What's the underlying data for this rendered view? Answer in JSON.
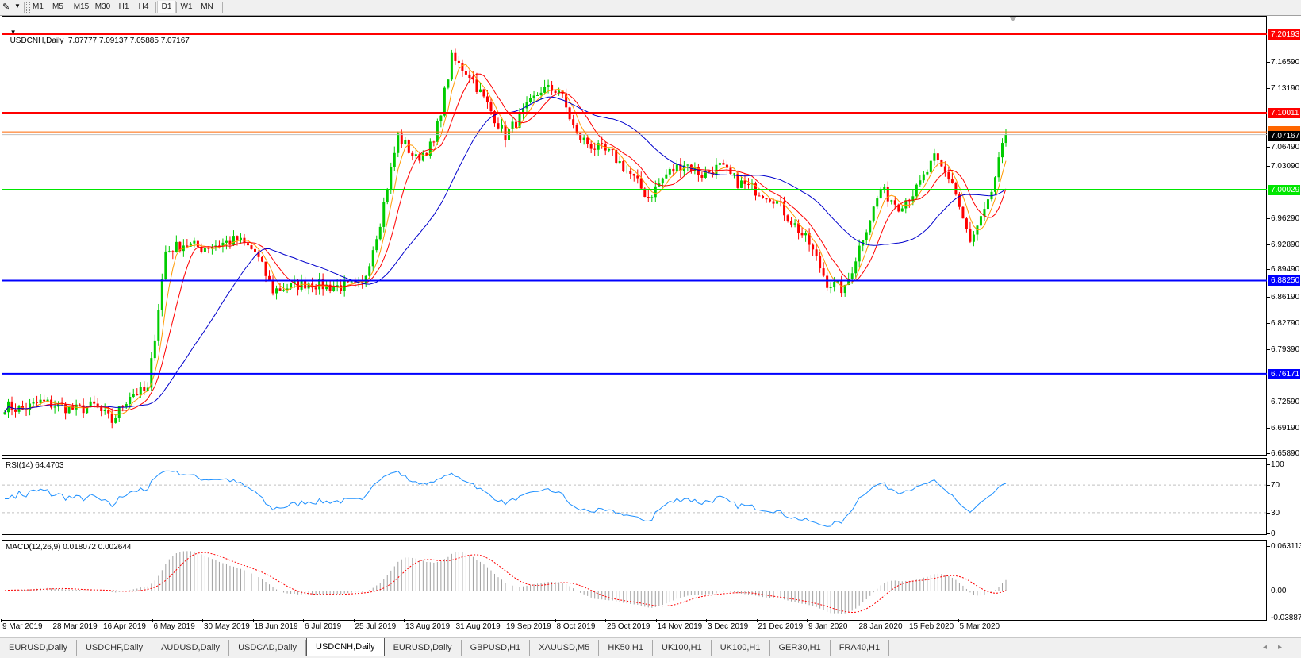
{
  "toolbar": {
    "timeframes": [
      "M1",
      "M5",
      "M15",
      "M30",
      "H1",
      "H4",
      "D1",
      "W1",
      "MN"
    ],
    "active_timeframe": "D1"
  },
  "chart": {
    "symbol_header": "USDCNH,Daily",
    "ohlc": "7.07777 7.09137 7.05885 7.07167",
    "current_price": "7.07167",
    "price_axis": [
      "7.16590",
      "7.13190",
      "7.06490",
      "7.03090",
      "6.96290",
      "6.92890",
      "6.89490",
      "6.86190",
      "6.82790",
      "6.79390",
      "6.72590",
      "6.69190",
      "6.65890"
    ],
    "levels": [
      {
        "value": "7.20193",
        "color": "#ff0000"
      },
      {
        "value": "7.10011",
        "color": "#ff0000"
      },
      {
        "value": "7.00029",
        "color": "#00e600"
      },
      {
        "value": "6.88250",
        "color": "#0000ff"
      },
      {
        "value": "6.76171",
        "color": "#0000ff"
      }
    ],
    "pending_line": {
      "value": 7.0753,
      "color": "#ff6600"
    },
    "ma_colors": {
      "fast": "#ff9900",
      "mid": "#ff0000",
      "slow": "#0000cc"
    },
    "candle_colors": {
      "bull": "#00cc00",
      "bear": "#ff0000"
    },
    "price_path": [
      6.72,
      6.715,
      6.725,
      6.72,
      6.715,
      6.72,
      6.7,
      6.735,
      6.74,
      6.92,
      6.93,
      6.925,
      6.93,
      6.935,
      6.92,
      6.87,
      6.875,
      6.88,
      6.875,
      6.875,
      6.875,
      6.96,
      7.07,
      7.04,
      7.06,
      7.17,
      7.15,
      7.11,
      7.07,
      7.1,
      7.13,
      7.13,
      7.07,
      7.055,
      7.045,
      7.02,
      6.99,
      7.02,
      7.035,
      7.02,
      7.03,
      7.01,
      7.0,
      6.99,
      6.96,
      6.93,
      6.88,
      6.87,
      6.94,
      7.0,
      6.98,
      7.0,
      7.04,
      7.01,
      6.93,
      6.98,
      7.07167
    ],
    "dates": [
      "9 Mar 2019",
      "28 Mar 2019",
      "16 Apr 2019",
      "6 May 2019",
      "30 May 2019",
      "18 Jun 2019",
      "6 Jul 2019",
      "25 Jul 2019",
      "13 Aug 2019",
      "31 Aug 2019",
      "19 Sep 2019",
      "8 Oct 2019",
      "26 Oct 2019",
      "14 Nov 2019",
      "3 Dec 2019",
      "21 Dec 2019",
      "9 Jan 2020",
      "28 Jan 2020",
      "15 Feb 2020",
      "5 Mar 2020"
    ]
  },
  "rsi": {
    "header": "RSI(14) 64.4703",
    "levels": [
      "100",
      "70",
      "30",
      "0"
    ],
    "color": "#1e90ff"
  },
  "macd": {
    "header": "MACD(12,26,9) 0.018072 0.002644",
    "axis": [
      "0.063113",
      "0.00",
      "-0.038872"
    ],
    "signal_color": "#ff0000",
    "hist_color": "#a0a0a0"
  },
  "tabs": [
    "EURUSD,Daily",
    "USDCHF,Daily",
    "AUDUSD,Daily",
    "USDCAD,Daily",
    "USDCNH,Daily",
    "EURUSD,Daily",
    "GBPUSD,H1",
    "XAUUSD,M5",
    "HK50,H1",
    "UK100,H1",
    "UK100,H1",
    "GER30,H1",
    "FRA40,H1"
  ],
  "active_tab": 4
}
